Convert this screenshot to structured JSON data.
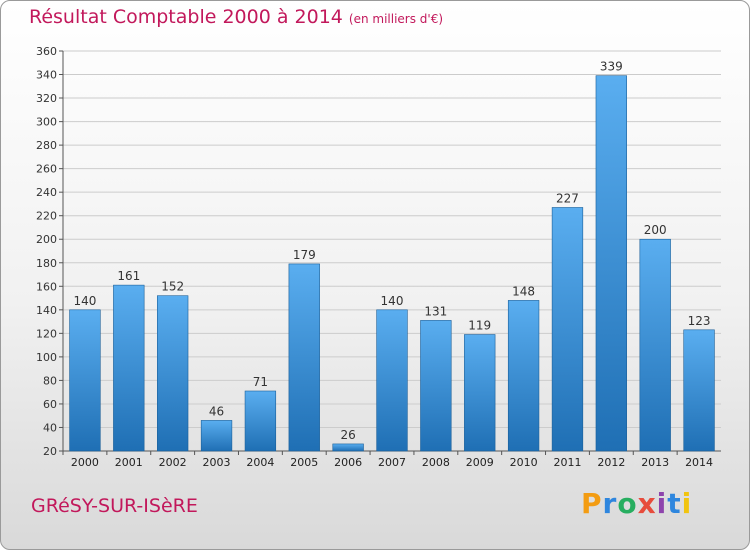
{
  "header": {
    "title": "Résultat Comptable 2000 à 2014",
    "subtitle": "(en milliers d'€)"
  },
  "footer": {
    "commune": "GRéSY-SUR-ISèRE",
    "logo_letters": [
      "P",
      "r",
      "o",
      "x",
      "i",
      "t",
      "i"
    ]
  },
  "chart_data": {
    "type": "bar",
    "title": "Résultat Comptable 2000 à 2014",
    "subtitle": "(en milliers d'€)",
    "categories": [
      "2000",
      "2001",
      "2002",
      "2003",
      "2004",
      "2005",
      "2006",
      "2007",
      "2008",
      "2009",
      "2010",
      "2011",
      "2012",
      "2013",
      "2014"
    ],
    "values": [
      140,
      161,
      152,
      46,
      71,
      179,
      26,
      140,
      131,
      119,
      148,
      227,
      339,
      200,
      123
    ],
    "ylim": [
      20,
      360
    ],
    "ytick_step": 20,
    "grid": true,
    "colors": {
      "bar_light": "#5aaef0",
      "bar_dark": "#1f6fb4",
      "grid": "#cccccc",
      "label": "#333333"
    }
  }
}
